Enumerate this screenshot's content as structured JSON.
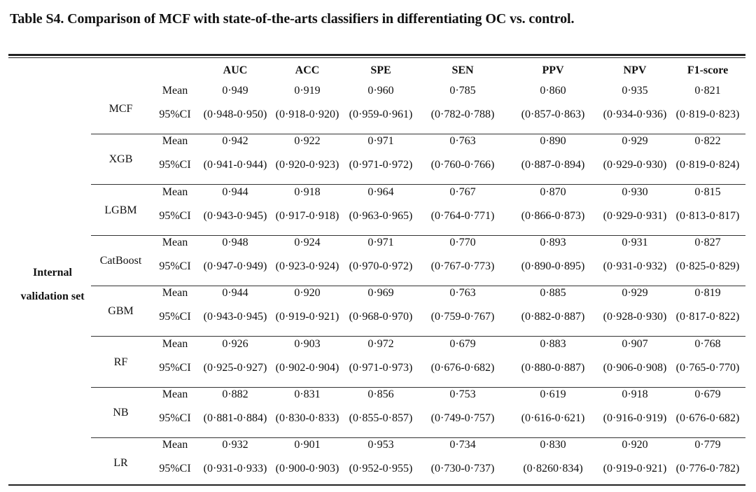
{
  "caption": "Table S4. Comparison of MCF with state-of-the-arts classifiers in differentiating OC vs. control.",
  "columns": [
    "AUC",
    "ACC",
    "SPE",
    "SEN",
    "PPV",
    "NPV",
    "F1-score"
  ],
  "section_label_line1": "Internal",
  "section_label_line2": "validation set",
  "row_labels": {
    "mean": "Mean",
    "ci": "95%CI"
  },
  "models": [
    {
      "name": "MCF",
      "mean": [
        "0·949",
        "0·919",
        "0·960",
        "0·785",
        "0·860",
        "0·935",
        "0·821"
      ],
      "ci": [
        "(0·948-0·950)",
        "(0·918-0·920)",
        "(0·959-0·961)",
        "(0·782-0·788)",
        "(0·857-0·863)",
        "(0·934-0·936)",
        "(0·819-0·823)"
      ]
    },
    {
      "name": "XGB",
      "mean": [
        "0·942",
        "0·922",
        "0·971",
        "0·763",
        "0·890",
        "0·929",
        "0·822"
      ],
      "ci": [
        "(0·941-0·944)",
        "(0·920-0·923)",
        "(0·971-0·972)",
        "(0·760-0·766)",
        "(0·887-0·894)",
        "(0·929-0·930)",
        "(0·819-0·824)"
      ]
    },
    {
      "name": "LGBM",
      "mean": [
        "0·944",
        "0·918",
        "0·964",
        "0·767",
        "0·870",
        "0·930",
        "0·815"
      ],
      "ci": [
        "(0·943-0·945)",
        "(0·917-0·918)",
        "(0·963-0·965)",
        "(0·764-0·771)",
        "(0·866-0·873)",
        "(0·929-0·931)",
        "(0·813-0·817)"
      ]
    },
    {
      "name": "CatBoost",
      "mean": [
        "0·948",
        "0·924",
        "0·971",
        "0·770",
        "0·893",
        "0·931",
        "0·827"
      ],
      "ci": [
        "(0·947-0·949)",
        "(0·923-0·924)",
        "(0·970-0·972)",
        "(0·767-0·773)",
        "(0·890-0·895)",
        "(0·931-0·932)",
        "(0·825-0·829)"
      ]
    },
    {
      "name": "GBM",
      "mean": [
        "0·944",
        "0·920",
        "0·969",
        "0·763",
        "0·885",
        "0·929",
        "0·819"
      ],
      "ci": [
        "(0·943-0·945)",
        "(0·919-0·921)",
        "(0·968-0·970)",
        "(0·759-0·767)",
        "(0·882-0·887)",
        "(0·928-0·930)",
        "(0·817-0·822)"
      ]
    },
    {
      "name": "RF",
      "mean": [
        "0·926",
        "0·903",
        "0·972",
        "0·679",
        "0·883",
        "0·907",
        "0·768"
      ],
      "ci": [
        "(0·925-0·927)",
        "(0·902-0·904)",
        "(0·971-0·973)",
        "(0·676-0·682)",
        "(0·880-0·887)",
        "(0·906-0·908)",
        "(0·765-0·770)"
      ]
    },
    {
      "name": "NB",
      "mean": [
        "0·882",
        "0·831",
        "0·856",
        "0·753",
        "0·619",
        "0·918",
        "0·679"
      ],
      "ci": [
        "(0·881-0·884)",
        "(0·830-0·833)",
        "(0·855-0·857)",
        "(0·749-0·757)",
        "(0·616-0·621)",
        "(0·916-0·919)",
        "(0·676-0·682)"
      ]
    },
    {
      "name": "LR",
      "mean": [
        "0·932",
        "0·901",
        "0·953",
        "0·734",
        "0·830",
        "0·920",
        "0·779"
      ],
      "ci": [
        "(0·931-0·933)",
        "(0·900-0·903)",
        "(0·952-0·955)",
        "(0·730-0·737)",
        "(0·8260·834)",
        "(0·919-0·921)",
        "(0·776-0·782)"
      ]
    }
  ]
}
